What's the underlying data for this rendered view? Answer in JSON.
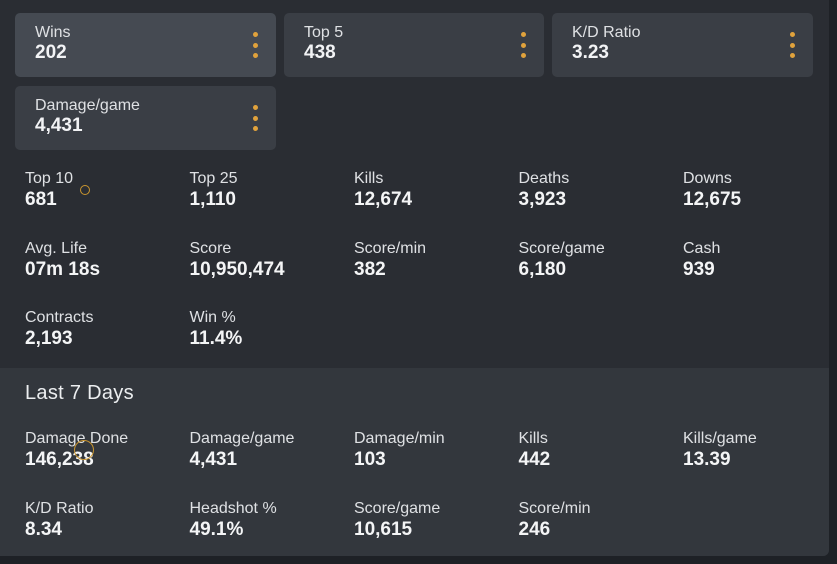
{
  "featured": [
    {
      "label": "Wins",
      "value": "202"
    },
    {
      "label": "Top 5",
      "value": "438"
    },
    {
      "label": "K/D Ratio",
      "value": "3.23"
    },
    {
      "label": "Damage/game",
      "value": "4,431"
    }
  ],
  "stats": [
    {
      "label": "Top 10",
      "value": "681"
    },
    {
      "label": "Top 25",
      "value": "1,110"
    },
    {
      "label": "Kills",
      "value": "12,674"
    },
    {
      "label": "Deaths",
      "value": "3,923"
    },
    {
      "label": "Downs",
      "value": "12,675"
    },
    {
      "label": "Avg. Life",
      "value": "07m 18s"
    },
    {
      "label": "Score",
      "value": "10,950,474"
    },
    {
      "label": "Score/min",
      "value": "382"
    },
    {
      "label": "Score/game",
      "value": "6,180"
    },
    {
      "label": "Cash",
      "value": "939"
    },
    {
      "label": "Contracts",
      "value": "2,193"
    },
    {
      "label": "Win %",
      "value": "11.4%"
    }
  ],
  "recent": {
    "title": "Last 7 Days",
    "stats": [
      {
        "label": "Damage Done",
        "value": "146,238"
      },
      {
        "label": "Damage/game",
        "value": "4,431"
      },
      {
        "label": "Damage/min",
        "value": "103"
      },
      {
        "label": "Kills",
        "value": "442"
      },
      {
        "label": "Kills/game",
        "value": "13.39"
      },
      {
        "label": "K/D Ratio",
        "value": "8.34"
      },
      {
        "label": "Headshot %",
        "value": "49.1%"
      },
      {
        "label": "Score/game",
        "value": "10,615"
      },
      {
        "label": "Score/min",
        "value": "246"
      }
    ]
  },
  "colors": {
    "accent": "#e0a23c",
    "panel": "#2a2d33",
    "card": "#3a3e45",
    "recent_bg": "#33373d"
  }
}
